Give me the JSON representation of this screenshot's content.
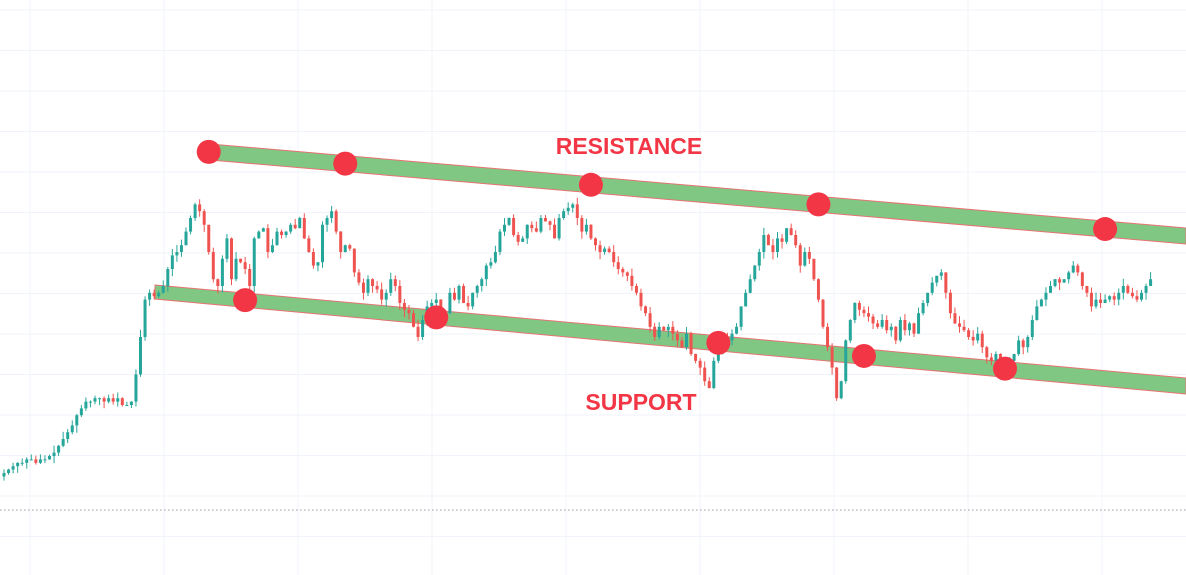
{
  "chart_data": {
    "type": "candlestick",
    "title": "",
    "xlabel": "",
    "ylabel": "",
    "grid": true,
    "legend": "none",
    "colors": {
      "up": "#26a69a",
      "down": "#ef5350",
      "channel_fill": "#81c784",
      "channel_edge": "#e57373",
      "touch_marker": "#f23645",
      "label": "#f23645",
      "grid": "#f0f3fa",
      "baseline": "#9598a1"
    },
    "annotations": {
      "resistance_label": "RESISTANCE",
      "support_label": "SUPPORT"
    },
    "ylim": [
      0,
      100
    ],
    "xlim": [
      0,
      260
    ],
    "closes": [
      5,
      6,
      7,
      8,
      8,
      9,
      9,
      8,
      9,
      9,
      10,
      11,
      13,
      15,
      17,
      19,
      22,
      24,
      26,
      26,
      27,
      27,
      26,
      27,
      26,
      27,
      25,
      25,
      26,
      34,
      45,
      56,
      58,
      57,
      58,
      60,
      65,
      69,
      70,
      72,
      76,
      80,
      84,
      82,
      78,
      70,
      62,
      60,
      68,
      74,
      62,
      68,
      67,
      65,
      60,
      74,
      76,
      77,
      70,
      72,
      76,
      75,
      76,
      78,
      77,
      80,
      74,
      70,
      66,
      67,
      78,
      80,
      82,
      76,
      70,
      72,
      71,
      64,
      61,
      58,
      62,
      60,
      59,
      56,
      58,
      62,
      60,
      55,
      53,
      52,
      48,
      45,
      50,
      54,
      55,
      56,
      51,
      52,
      58,
      56,
      60,
      55,
      54,
      58,
      60,
      62,
      66,
      67,
      70,
      76,
      78,
      80,
      75,
      73,
      74,
      78,
      77,
      76,
      80,
      79,
      78,
      74,
      80,
      82,
      83,
      84,
      80,
      76,
      78,
      74,
      72,
      70,
      71,
      70,
      67,
      65,
      64,
      63,
      60,
      58,
      54,
      52,
      48,
      45,
      48,
      47,
      48,
      46,
      44,
      42,
      46,
      40,
      38,
      36,
      32,
      30,
      38,
      41,
      45,
      44,
      46,
      48,
      54,
      58,
      62,
      66,
      70,
      75,
      72,
      70,
      74,
      73,
      77,
      75,
      72,
      66,
      70,
      68,
      62,
      56,
      48,
      42,
      36,
      27,
      32,
      44,
      50,
      55,
      53,
      52,
      51,
      49,
      48,
      50,
      47,
      48,
      44,
      50,
      47,
      49,
      46,
      52,
      55,
      58,
      61,
      63,
      64,
      58,
      52,
      49,
      48,
      47,
      45,
      44,
      46,
      42,
      39,
      38,
      40,
      36,
      33,
      38,
      40,
      44,
      42,
      45,
      50,
      54,
      56,
      58,
      60,
      62,
      61,
      62,
      64,
      66,
      64,
      60,
      58,
      54,
      56,
      55,
      56,
      57,
      56,
      58,
      60,
      58,
      57,
      56,
      58,
      60,
      62
    ]
  }
}
